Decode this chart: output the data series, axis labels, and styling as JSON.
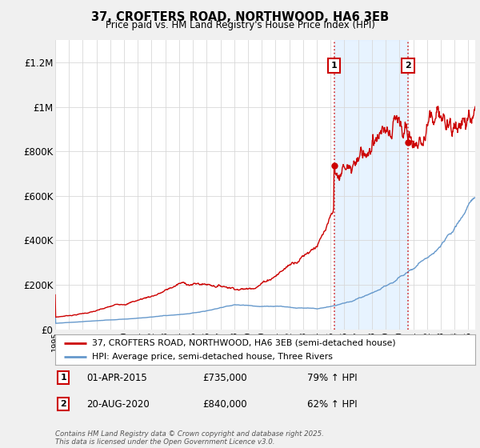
{
  "title": "37, CROFTERS ROAD, NORTHWOOD, HA6 3EB",
  "subtitle": "Price paid vs. HM Land Registry's House Price Index (HPI)",
  "legend_line1": "37, CROFTERS ROAD, NORTHWOOD, HA6 3EB (semi-detached house)",
  "legend_line2": "HPI: Average price, semi-detached house, Three Rivers",
  "annotation1_label": "1",
  "annotation1_date": "01-APR-2015",
  "annotation1_price": "£735,000",
  "annotation1_hpi": "79% ↑ HPI",
  "annotation2_label": "2",
  "annotation2_date": "20-AUG-2020",
  "annotation2_price": "£840,000",
  "annotation2_hpi": "62% ↑ HPI",
  "footer": "Contains HM Land Registry data © Crown copyright and database right 2025.\nThis data is licensed under the Open Government Licence v3.0.",
  "red_color": "#cc0000",
  "blue_color": "#6699cc",
  "shade_color": "#ddeeff",
  "background_color": "#f0f0f0",
  "plot_bg_color": "#ffffff",
  "ylim": [
    0,
    1300000
  ],
  "yticks": [
    0,
    200000,
    400000,
    600000,
    800000,
    1000000,
    1200000
  ],
  "ytick_labels": [
    "£0",
    "£200K",
    "£400K",
    "£600K",
    "£800K",
    "£1M",
    "£1.2M"
  ],
  "vline1_x": 2015.25,
  "vline2_x": 2020.63,
  "xmin": 1995,
  "xmax": 2025.5
}
